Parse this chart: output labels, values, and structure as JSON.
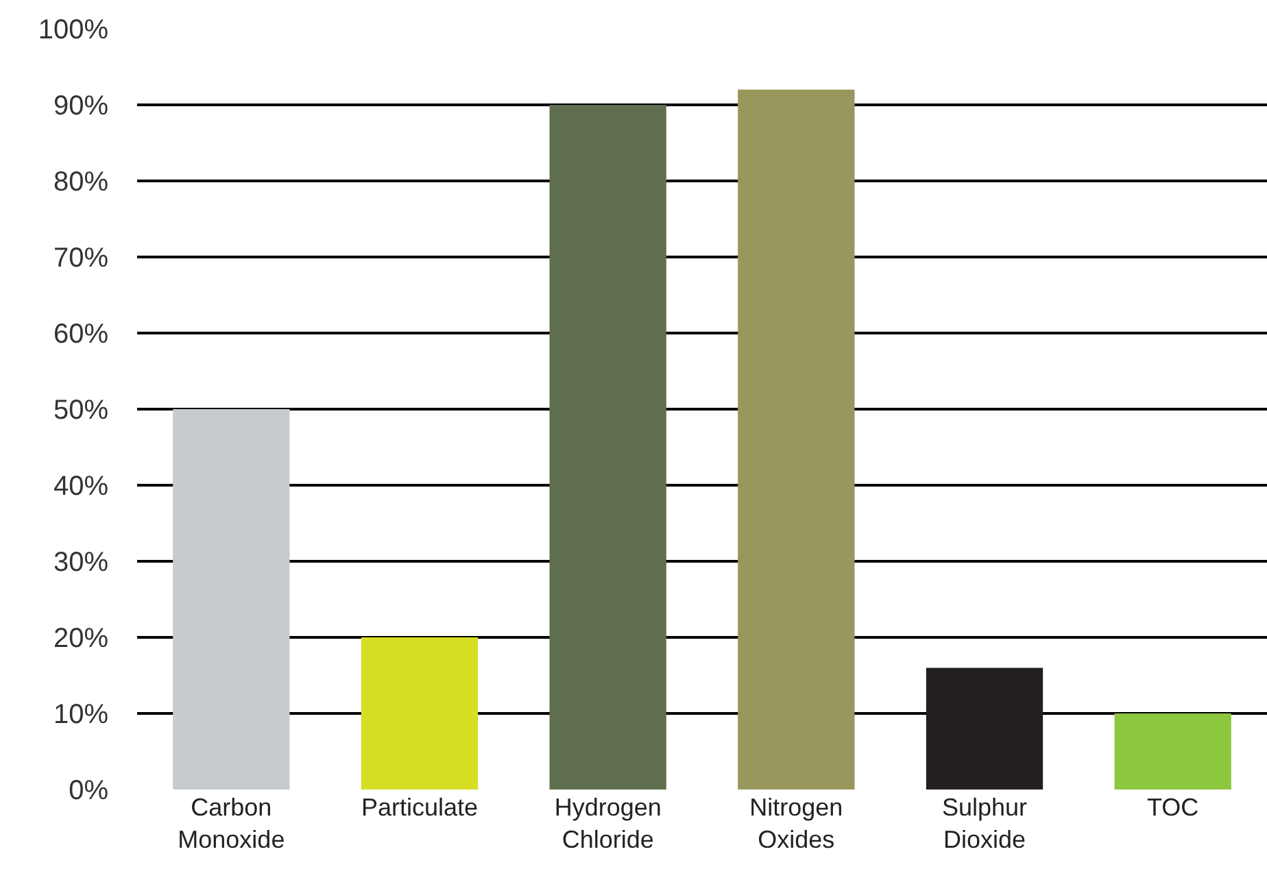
{
  "chart_data": {
    "type": "bar",
    "categories": [
      "Carbon Monoxide",
      "Particulate",
      "Hydrogen Chloride",
      "Nitrogen Oxides",
      "Sulphur Dioxide",
      "TOC"
    ],
    "values": [
      50,
      20,
      90,
      92,
      16,
      10
    ],
    "colors": [
      "#c8cbcd",
      "#d6df23",
      "#5e6e4e",
      "#98975c",
      "#231f20",
      "#8dc63f"
    ],
    "ylim": [
      0,
      100
    ],
    "yticks": [
      {
        "value": 0,
        "label": "0%"
      },
      {
        "value": 10,
        "label": "10%"
      },
      {
        "value": 20,
        "label": "20%"
      },
      {
        "value": 30,
        "label": "30%"
      },
      {
        "value": 40,
        "label": "40%"
      },
      {
        "value": 50,
        "label": "50%"
      },
      {
        "value": 60,
        "label": "60%"
      },
      {
        "value": 70,
        "label": "70%"
      },
      {
        "value": 80,
        "label": "80%"
      },
      {
        "value": 90,
        "label": "90%"
      },
      {
        "value": 100,
        "label": "100%"
      }
    ],
    "grid": "y",
    "legend": false
  }
}
